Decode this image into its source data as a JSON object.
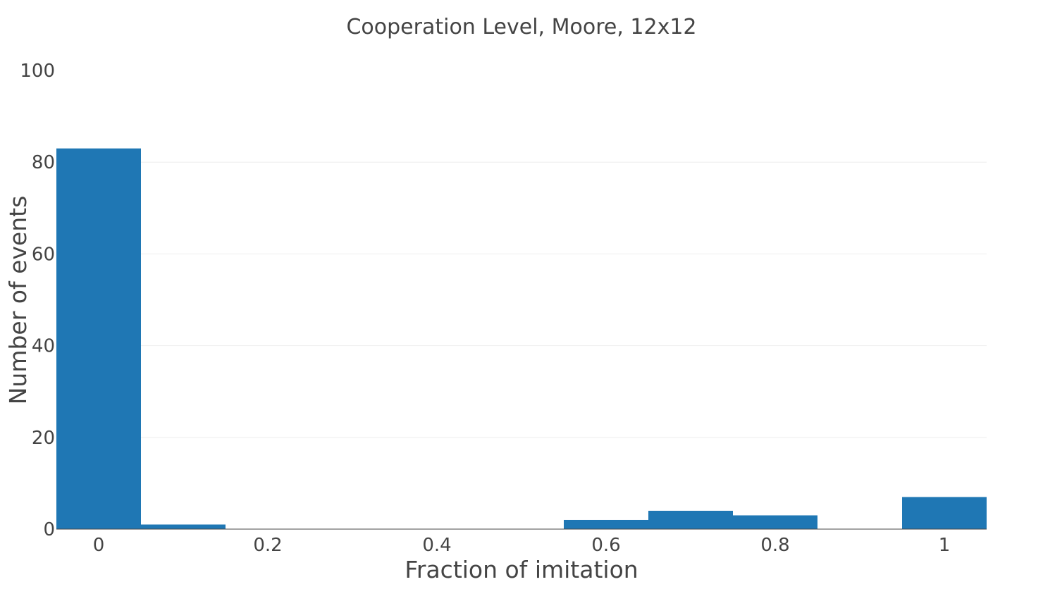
{
  "chart_data": {
    "type": "bar",
    "title": "Cooperation Level, Moore, 12x12",
    "xlabel": "Fraction of imitation",
    "ylabel": "Number of events",
    "x_bin_width": 0.1,
    "x_bin_centers": [
      0,
      0.1,
      0.2,
      0.3,
      0.4,
      0.5,
      0.6,
      0.7,
      0.8,
      0.9,
      1
    ],
    "values": [
      83,
      1,
      0,
      0,
      0,
      0,
      2,
      4,
      3,
      0,
      7
    ],
    "xlim": [
      -0.05,
      1.05
    ],
    "ylim": [
      0,
      100
    ],
    "x_ticks": [
      0,
      0.2,
      0.4,
      0.6,
      0.8,
      1
    ],
    "x_tick_labels": [
      "0",
      "0.2",
      "0.4",
      "0.6",
      "0.8",
      "1"
    ],
    "y_ticks": [
      0,
      20,
      40,
      60,
      80,
      100
    ],
    "y_tick_labels": [
      "0",
      "20",
      "40",
      "60",
      "80",
      "100"
    ],
    "grid": true,
    "bar_color": "#1f77b4",
    "grid_color": "#eeeeee",
    "text_color": "#444444"
  }
}
